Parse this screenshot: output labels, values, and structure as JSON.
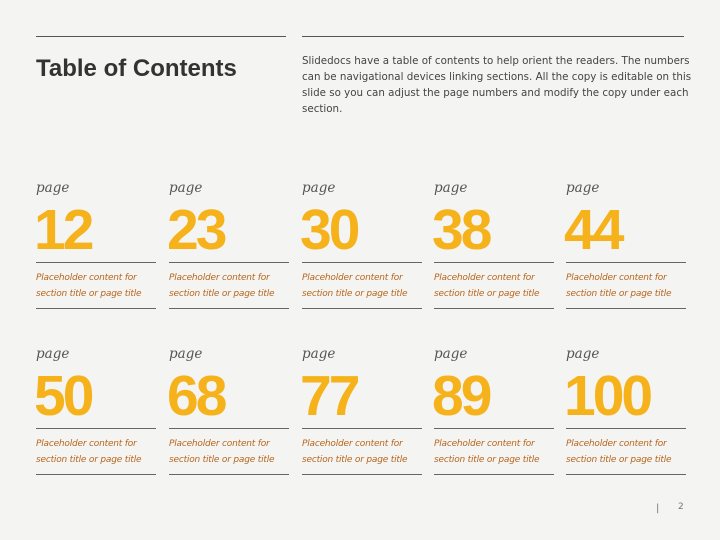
{
  "header": {
    "title": "Table of Contents",
    "intro": "Slidedocs have a table of contents to help orient the readers. The numbers can be navigational devices linking sections. All the copy is editable on this slide so you can adjust the page numbers and modify the copy under each section."
  },
  "entries": [
    {
      "label": "page",
      "number": "12",
      "desc": "Placeholder content for section title or page title"
    },
    {
      "label": "page",
      "number": "23",
      "desc": "Placeholder content for section title or page title"
    },
    {
      "label": "page",
      "number": "30",
      "desc": "Placeholder content for section title or page title"
    },
    {
      "label": "page",
      "number": "38",
      "desc": "Placeholder content for section title or page title"
    },
    {
      "label": "page",
      "number": "44",
      "desc": "Placeholder content for section title or page title"
    },
    {
      "label": "page",
      "number": "50",
      "desc": "Placeholder content for section title or page title"
    },
    {
      "label": "page",
      "number": "68",
      "desc": "Placeholder content for section title or page title"
    },
    {
      "label": "page",
      "number": "77",
      "desc": "Placeholder content for section title or page title"
    },
    {
      "label": "page",
      "number": "89",
      "desc": "Placeholder content for section title or page title"
    },
    {
      "label": "page",
      "number": "100",
      "desc": "Placeholder content for section title or page title"
    }
  ],
  "footer": {
    "separator": "|",
    "page_number": "2"
  },
  "colors": {
    "accent_number": "#f5b21b",
    "accent_text": "#b8651a"
  }
}
